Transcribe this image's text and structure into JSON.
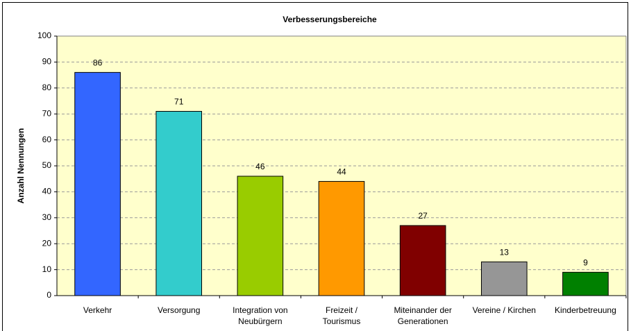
{
  "chart_data": {
    "type": "bar",
    "title": "Verbesserungsbereiche",
    "y_label": "Anzahl Nennungen",
    "categories": [
      "Verkehr",
      "Versorgung",
      "Integration von\nNeubürgern",
      "Freizeit /\nTourismus",
      "Miteinander der\nGenerationen",
      "Vereine / Kirchen",
      "Kinderbetreuung"
    ],
    "values": [
      86,
      71,
      46,
      44,
      27,
      13,
      9
    ],
    "colors": [
      "#3366ff",
      "#33cccc",
      "#99cc00",
      "#ff9900",
      "#800000",
      "#969696",
      "#008000"
    ],
    "ylim": [
      0,
      100
    ],
    "yticks": [
      0,
      10,
      20,
      30,
      40,
      50,
      60,
      70,
      80,
      90,
      100
    ],
    "grid": true
  }
}
